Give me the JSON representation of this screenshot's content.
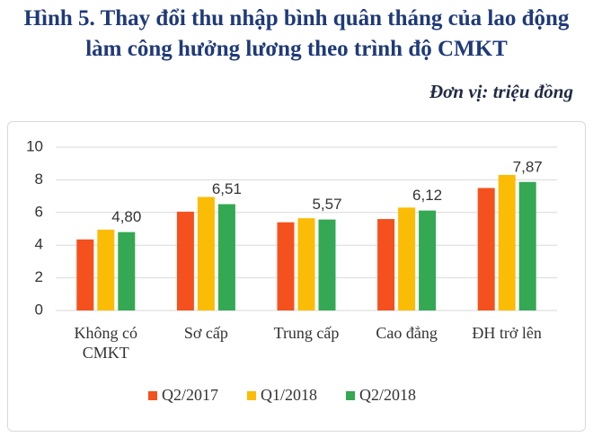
{
  "chart_data": {
    "type": "bar",
    "title": "Hình 5. Thay đổi thu nhập bình quân tháng của lao động làm công hưởng lương theo trình độ CMKT",
    "subtitle": "Đơn vị: triệu đồng",
    "categories": [
      "Không có CMKT",
      "Sơ cấp",
      "Trung cấp",
      "Cao đẳng",
      "ĐH trở lên"
    ],
    "series": [
      {
        "name": "Q2/2017",
        "color": "#f4511e",
        "values": [
          4.35,
          6.05,
          5.4,
          5.6,
          7.5
        ]
      },
      {
        "name": "Q1/2018",
        "color": "#fbbc05",
        "values": [
          4.95,
          6.95,
          5.65,
          6.3,
          8.3
        ]
      },
      {
        "name": "Q2/2018",
        "color": "#34a853",
        "values": [
          4.8,
          6.51,
          5.57,
          6.12,
          7.87
        ],
        "value_labels": [
          "4,80",
          "6,51",
          "5,57",
          "6,12",
          "7,87"
        ]
      }
    ],
    "ylim": [
      0,
      10
    ],
    "yticks": [
      0,
      2,
      4,
      6,
      8,
      10
    ],
    "grid": true,
    "legend": "bottom"
  }
}
